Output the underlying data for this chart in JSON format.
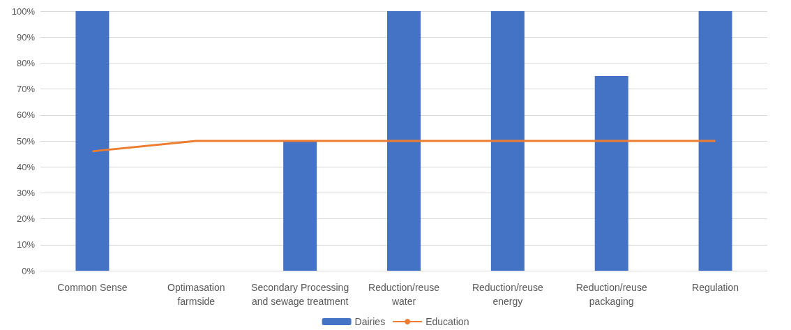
{
  "chart_data": {
    "type": "bar",
    "categories": [
      "Common Sense",
      "Optimasation\nfarmside",
      "Secondary Processing\nand sewage treatment",
      "Reduction/reuse\nwater",
      "Reduction/reuse\nenergy",
      "Reduction/reuse\npackaging",
      "Regulation"
    ],
    "series": [
      {
        "name": "Dairies",
        "color": "#4472c4",
        "values": [
          100,
          0,
          50,
          100,
          100,
          75,
          100
        ]
      },
      {
        "name": "Education",
        "type": "line",
        "color": "#ed7d31",
        "values": [
          46,
          50,
          50,
          50,
          50,
          50,
          50
        ]
      }
    ],
    "ylim": [
      0,
      100
    ],
    "yticks": [
      {
        "value": 0,
        "label": "0%"
      },
      {
        "value": 10,
        "label": "10%"
      },
      {
        "value": 20,
        "label": "20%"
      },
      {
        "value": 30,
        "label": "30%"
      },
      {
        "value": 40,
        "label": "40%"
      },
      {
        "value": 50,
        "label": "50%"
      },
      {
        "value": 60,
        "label": "60%"
      },
      {
        "value": 70,
        "label": "70%"
      },
      {
        "value": 80,
        "label": "80%"
      },
      {
        "value": 90,
        "label": "90%"
      },
      {
        "value": 100,
        "label": "100%"
      }
    ],
    "grid": "y",
    "legend": "bottom",
    "marker": "none"
  }
}
